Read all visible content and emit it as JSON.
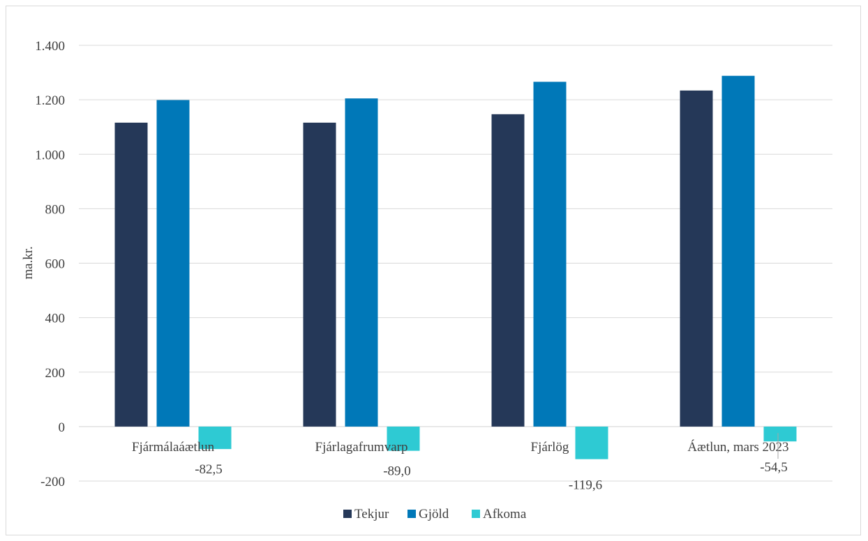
{
  "chart_data": {
    "type": "bar",
    "ylabel": "ma.kr.",
    "ylim": [
      -200,
      1400
    ],
    "yticks": [
      -200,
      0,
      200,
      400,
      600,
      800,
      1000,
      1200,
      1400
    ],
    "ytick_labels": [
      "-200",
      "0",
      "200",
      "400",
      "600",
      "800",
      "1.000",
      "1.200",
      "1.400"
    ],
    "categories": [
      "Fjármálaáætlun",
      "Fjárlagafrumvarp",
      "Fjárlög",
      "Áætlun, mars 2023"
    ],
    "series": [
      {
        "name": "Tekjur",
        "color": "#253858",
        "values": [
          1116,
          1116,
          1147,
          1234
        ]
      },
      {
        "name": "Gjöld",
        "color": "#0078b8",
        "values": [
          1199,
          1205,
          1266,
          1288
        ]
      },
      {
        "name": "Afkoma",
        "color": "#2ecad3",
        "values": [
          -82.5,
          -89.0,
          -119.6,
          -54.5
        ],
        "data_labels": [
          "-82,5",
          "-89,0",
          "-119,6",
          "-54,5"
        ]
      }
    ],
    "grid": true,
    "legend_position": "bottom"
  }
}
